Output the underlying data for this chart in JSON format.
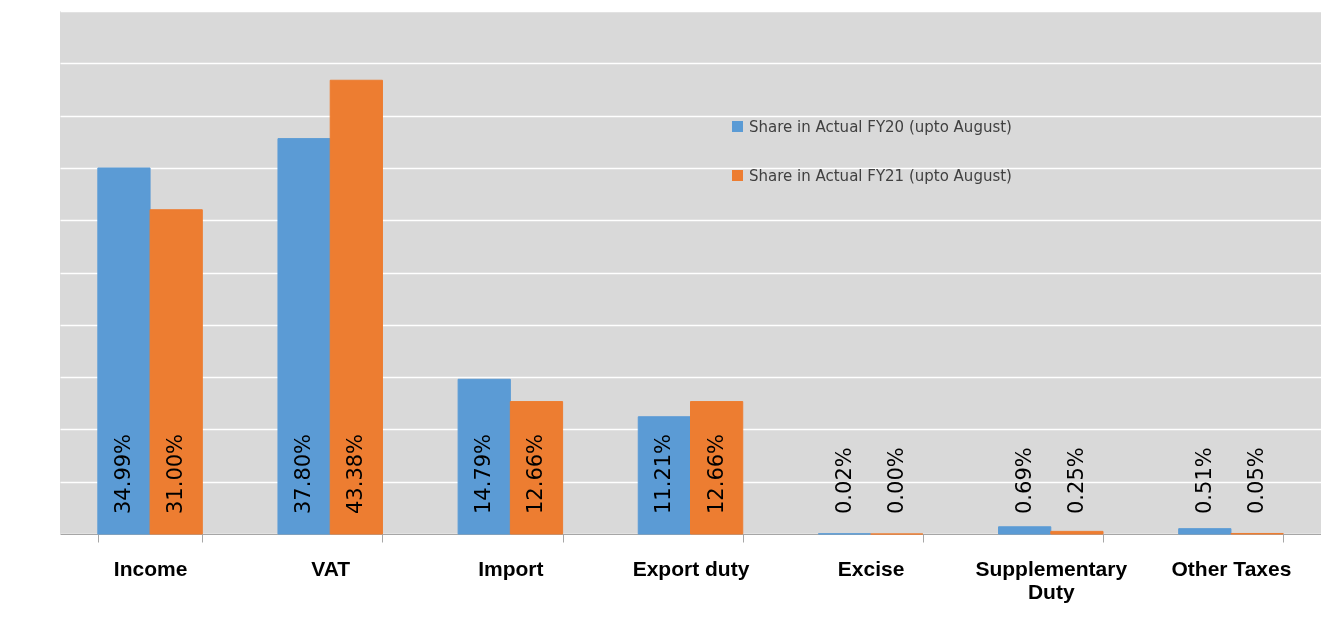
{
  "chart_data": {
    "type": "bar",
    "categories": [
      "Income",
      "VAT",
      "Import",
      "Export duty",
      "Excise",
      "Supplementary Duty",
      "Other Taxes"
    ],
    "series": [
      {
        "name": "Share in Actual FY20 (upto August)",
        "color": "#5b9bd5",
        "values": [
          34.99,
          37.8,
          14.79,
          11.21,
          0.02,
          0.69,
          0.51
        ],
        "value_labels": [
          "34.99%",
          "37.80%",
          "14.79%",
          "11.21%",
          "0.02%",
          "0.69%",
          "0.51%"
        ]
      },
      {
        "name": "Share in Actual FY21 (upto August)",
        "color": "#ed7d31",
        "values": [
          31.0,
          43.38,
          12.66,
          12.66,
          0.0,
          0.25,
          0.05
        ],
        "value_labels": [
          "31.00%",
          "43.38%",
          "12.66%",
          "12.66%",
          "0.00%",
          "0.25%",
          "0.05%"
        ]
      }
    ],
    "ylim": [
      0,
      50
    ],
    "yticks": [
      {
        "value": 0,
        "label": null
      },
      {
        "value": 5,
        "label": null
      },
      {
        "value": 10,
        "label": null
      },
      {
        "value": 15,
        "label": null
      },
      {
        "value": 20,
        "label": null
      },
      {
        "value": 25,
        "label": null
      },
      {
        "value": 30,
        "label": null
      },
      {
        "value": 35,
        "label": null
      },
      {
        "value": 40,
        "label": null
      },
      {
        "value": 45,
        "label": null
      },
      {
        "value": 50,
        "label": null
      }
    ],
    "tick_labels": "x",
    "grid": "y",
    "legend": "top right"
  }
}
